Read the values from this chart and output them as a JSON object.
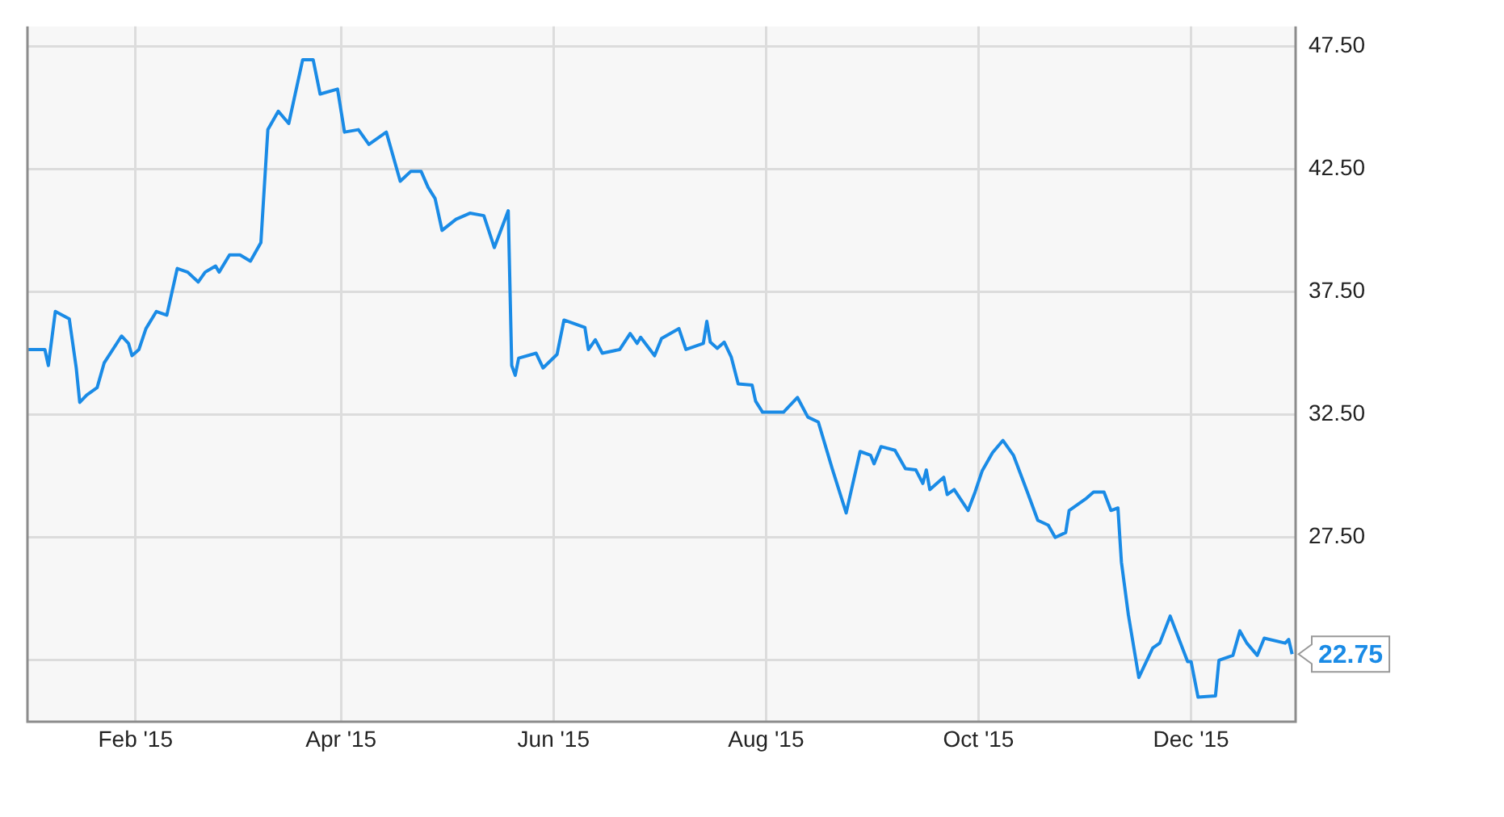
{
  "chart_data": {
    "type": "line",
    "x": [
      "2015-01-01",
      "2015-01-06",
      "2015-01-07",
      "2015-01-09",
      "2015-01-13",
      "2015-01-15",
      "2015-01-16",
      "2015-01-18",
      "2015-01-21",
      "2015-01-23",
      "2015-01-28",
      "2015-01-30",
      "2015-01-31",
      "2015-02-02",
      "2015-02-04",
      "2015-02-07",
      "2015-02-10",
      "2015-02-13",
      "2015-02-16",
      "2015-02-19",
      "2015-02-21",
      "2015-02-24",
      "2015-02-25",
      "2015-02-28",
      "2015-03-03",
      "2015-03-06",
      "2015-03-09",
      "2015-03-11",
      "2015-03-14",
      "2015-03-17",
      "2015-03-21",
      "2015-03-24",
      "2015-03-26",
      "2015-03-31",
      "2015-04-02",
      "2015-04-06",
      "2015-04-09",
      "2015-04-14",
      "2015-04-18",
      "2015-04-21",
      "2015-04-24",
      "2015-04-26",
      "2015-04-28",
      "2015-04-30",
      "2015-05-04",
      "2015-05-08",
      "2015-05-12",
      "2015-05-15",
      "2015-05-19",
      "2015-05-20",
      "2015-05-21",
      "2015-05-22",
      "2015-05-27",
      "2015-05-29",
      "2015-06-02",
      "2015-06-04",
      "2015-06-10",
      "2015-06-11",
      "2015-06-13",
      "2015-06-15",
      "2015-06-20",
      "2015-06-23",
      "2015-06-25",
      "2015-06-26",
      "2015-06-30",
      "2015-07-02",
      "2015-07-07",
      "2015-07-09",
      "2015-07-14",
      "2015-07-15",
      "2015-07-16",
      "2015-07-18",
      "2015-07-20",
      "2015-07-22",
      "2015-07-24",
      "2015-07-28",
      "2015-07-29",
      "2015-07-31",
      "2015-08-06",
      "2015-08-10",
      "2015-08-13",
      "2015-08-16",
      "2015-08-20",
      "2015-08-24",
      "2015-08-28",
      "2015-08-31",
      "2015-09-01",
      "2015-09-03",
      "2015-09-07",
      "2015-09-10",
      "2015-09-13",
      "2015-09-15",
      "2015-09-16",
      "2015-09-17",
      "2015-09-21",
      "2015-09-22",
      "2015-09-24",
      "2015-09-28",
      "2015-09-30",
      "2015-10-02",
      "2015-10-05",
      "2015-10-08",
      "2015-10-11",
      "2015-10-15",
      "2015-10-18",
      "2015-10-21",
      "2015-10-23",
      "2015-10-26",
      "2015-10-27",
      "2015-11-01",
      "2015-11-03",
      "2015-11-06",
      "2015-11-08",
      "2015-11-10",
      "2015-11-11",
      "2015-11-13",
      "2015-11-16",
      "2015-11-20",
      "2015-11-22",
      "2015-11-25",
      "2015-11-30",
      "2015-12-01",
      "2015-12-03",
      "2015-12-08",
      "2015-12-09",
      "2015-12-13",
      "2015-12-15",
      "2015-12-17",
      "2015-12-20",
      "2015-12-22",
      "2015-12-28",
      "2015-12-29",
      "2015-12-30"
    ],
    "series": [
      {
        "color": "#1a8be6",
        "values": [
          35.15,
          35.15,
          34.5,
          36.7,
          36.4,
          34.4,
          33.0,
          33.3,
          33.6,
          34.6,
          35.7,
          35.4,
          34.9,
          35.15,
          36.0,
          36.7,
          36.55,
          38.45,
          38.3,
          37.9,
          38.3,
          38.55,
          38.3,
          39.0,
          39.0,
          38.75,
          39.5,
          44.1,
          44.85,
          44.35,
          46.95,
          46.95,
          45.55,
          45.75,
          44.0,
          44.1,
          43.5,
          44.0,
          42.0,
          42.4,
          42.4,
          41.75,
          41.3,
          40.0,
          40.45,
          40.7,
          40.6,
          39.3,
          40.8,
          34.5,
          34.1,
          34.8,
          35.0,
          34.4,
          34.95,
          36.35,
          36.05,
          35.15,
          35.55,
          35.0,
          35.15,
          35.8,
          35.4,
          35.65,
          34.9,
          35.6,
          36.0,
          35.15,
          35.4,
          36.3,
          35.45,
          35.2,
          35.45,
          34.85,
          33.75,
          33.7,
          33.05,
          32.6,
          32.6,
          33.2,
          32.4,
          32.2,
          30.3,
          28.5,
          31.0,
          30.85,
          30.5,
          31.2,
          31.05,
          30.3,
          30.25,
          29.7,
          30.25,
          29.45,
          29.95,
          29.25,
          29.45,
          28.6,
          29.35,
          30.2,
          30.95,
          31.45,
          30.85,
          29.35,
          28.2,
          28.0,
          27.5,
          27.7,
          28.6,
          29.1,
          29.35,
          29.35,
          28.6,
          28.7,
          26.5,
          24.35,
          21.8,
          23.0,
          23.2,
          24.3,
          22.45,
          22.45,
          21.0,
          21.05,
          22.5,
          22.7,
          23.7,
          23.2,
          22.7,
          23.4,
          23.2,
          23.35,
          22.75
        ]
      }
    ],
    "xlim": [
      "2015-01-01",
      "2015-12-31"
    ],
    "xticks": [
      {
        "value": "2015-02-01",
        "label": "Feb '15"
      },
      {
        "value": "2015-04-01",
        "label": "Apr '15"
      },
      {
        "value": "2015-06-01",
        "label": "Jun '15"
      },
      {
        "value": "2015-08-01",
        "label": "Aug '15"
      },
      {
        "value": "2015-10-01",
        "label": "Oct '15"
      },
      {
        "value": "2015-12-01",
        "label": "Dec '15"
      }
    ],
    "ylim": [
      20,
      48.3
    ],
    "yticks": [
      {
        "value": 22.5,
        "label": null
      },
      {
        "value": 27.5,
        "label": "27.50"
      },
      {
        "value": 32.5,
        "label": "32.50"
      },
      {
        "value": 37.5,
        "label": "37.50"
      },
      {
        "value": 42.5,
        "label": "42.50"
      },
      {
        "value": 47.5,
        "label": "47.50"
      }
    ],
    "annotations": [
      {
        "text": "22.75",
        "x": "2015-12-30",
        "y": 22.75
      }
    ],
    "grid": true,
    "marker": "none",
    "line_style": "solid"
  }
}
